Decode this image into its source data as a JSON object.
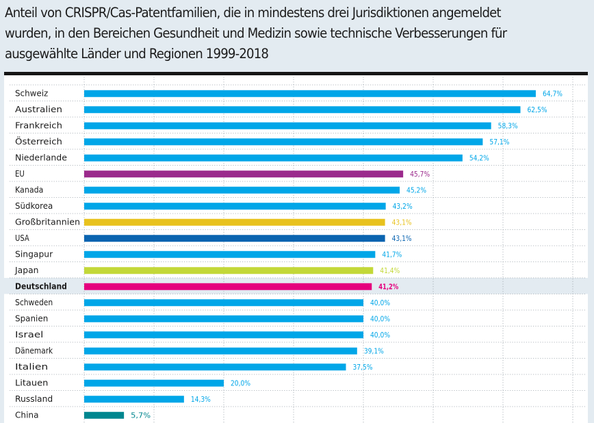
{
  "title_lines": [
    "Anteil von CRISPR/Cas-Patentfamilien, die in mindestens drei Jurisdiktionen angemeldet",
    "wurden, in den Bereichen Gesundheit und Medizin sowie technische Verbesserungen für",
    "ausgewählte Länder und Regionen 1999-2018"
  ],
  "colors": {
    "default": "#00a6e8",
    "eu": "#9b2a8c",
    "gb": "#e8c21e",
    "usa": "#0a64b0",
    "japan": "#c3d838",
    "deutschland": "#e5007d",
    "china": "#00868f",
    "highlight_row": "#e3ebf1"
  },
  "chart_data": {
    "type": "bar",
    "orientation": "horizontal",
    "title": "Anteil von CRISPR/Cas-Patentfamilien, die in mindestens drei Jurisdiktionen angemeldet wurden, in den Bereichen Gesundheit und Medizin sowie technische Verbesserungen für ausgewählte Länder und Regionen 1999-2018",
    "xlabel": "",
    "ylabel": "",
    "xlim": [
      0,
      70
    ],
    "grid": true,
    "grid_step": 10,
    "unit": "%",
    "highlight": "Deutschland",
    "categories": [
      "Schweiz",
      "Australien",
      "Frankreich",
      "Österreich",
      "Niederlande",
      "EU",
      "Kanada",
      "Südkorea",
      "Großbritannien",
      "USA",
      "Singapur",
      "Japan",
      "Deutschland",
      "Schweden",
      "Spanien",
      "Israel",
      "Dänemark",
      "Italien",
      "Litauen",
      "Russland",
      "China"
    ],
    "values": [
      64.7,
      62.5,
      58.3,
      57.1,
      54.2,
      45.7,
      45.2,
      43.2,
      43.1,
      43.1,
      41.7,
      41.4,
      41.2,
      40.0,
      40.0,
      40.0,
      39.1,
      37.5,
      20.0,
      14.3,
      5.7
    ],
    "value_labels": [
      "64,7%",
      "62,5%",
      "58,3%",
      "57,1%",
      "54,2%",
      "45,7%",
      "45,2%",
      "43,2%",
      "43,1%",
      "43,1%",
      "41,7%",
      "41,4%",
      "41,2%",
      "40,0%",
      "40,0%",
      "40,0%",
      "39,1%",
      "37,5%",
      "20,0%",
      "14,3%",
      "5,7%"
    ],
    "bar_color_keys": [
      "default",
      "default",
      "default",
      "default",
      "default",
      "eu",
      "default",
      "default",
      "gb",
      "usa",
      "default",
      "japan",
      "deutschland",
      "default",
      "default",
      "default",
      "default",
      "default",
      "default",
      "default",
      "china"
    ]
  }
}
